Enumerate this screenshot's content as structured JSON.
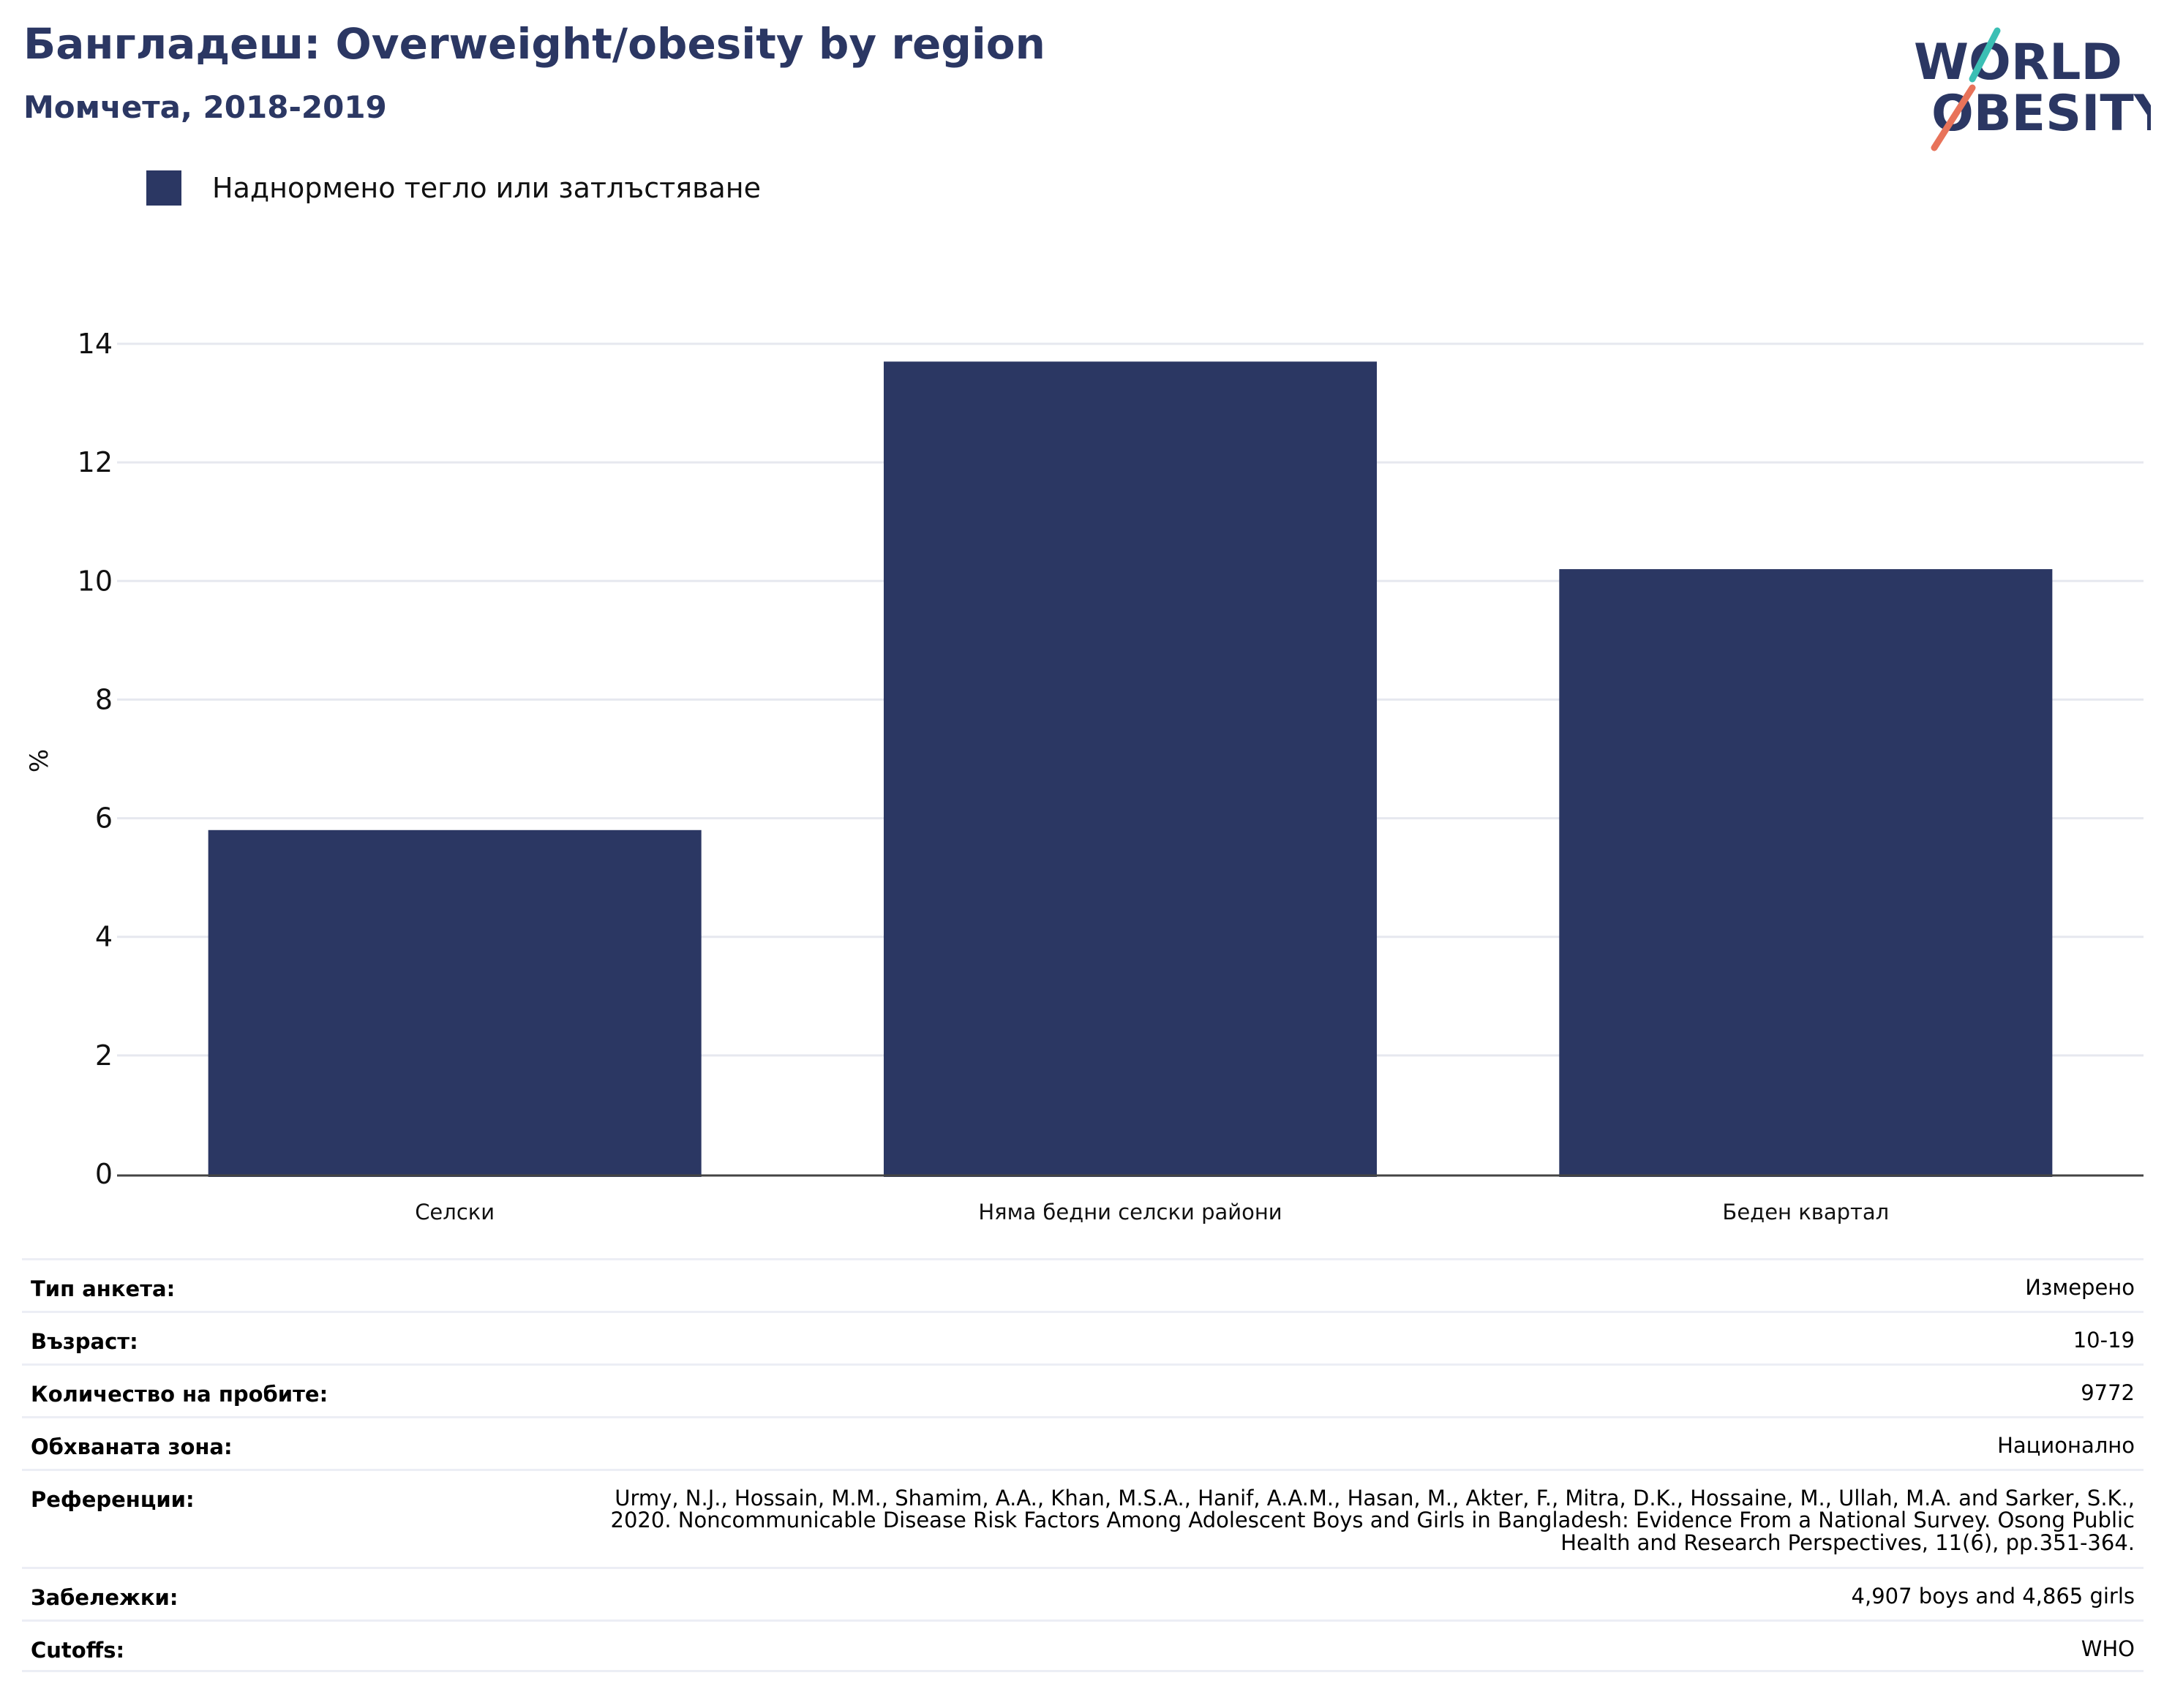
{
  "header": {
    "title": "Бангладеш: Overweight/obesity by region",
    "subtitle": "Момчета, 2018-2019"
  },
  "logo": {
    "line1": "WORLD",
    "line2": "OBESITY",
    "colors": {
      "navy": "#2b3763",
      "teal": "#3bbfb4",
      "coral": "#e8735a"
    }
  },
  "legend": {
    "label": "Наднормено тегло или затлъстяване",
    "color": "#2b3763"
  },
  "chart_data": {
    "type": "bar",
    "categories": [
      "Селски",
      "Няма бедни селски райони",
      "Беден квартал"
    ],
    "series": [
      {
        "name": "Наднормено тегло или затлъстяване",
        "values": [
          5.8,
          13.7,
          10.2
        ],
        "color": "#2b3763"
      }
    ],
    "ylabel": "%",
    "ylim": [
      0,
      14
    ],
    "yticks": [
      0,
      2,
      4,
      6,
      8,
      10,
      12,
      14
    ],
    "grid": true,
    "legend_position": "top-left"
  },
  "info": [
    {
      "label": "Тип анкета:",
      "value": "Измерено"
    },
    {
      "label": "Възраст:",
      "value": "10-19"
    },
    {
      "label": "Количество на пробите:",
      "value": "9772"
    },
    {
      "label": "Обхваната зона:",
      "value": "Национално"
    },
    {
      "label": "Референции:",
      "value": "Urmy, N.J., Hossain, M.M., Shamim, A.A., Khan, M.S.A., Hanif, A.A.M., Hasan, M., Akter, F., Mitra, D.K., Hossaine, M., Ullah, M.A. and Sarker, S.K., 2020. Noncommunicable Disease Risk Factors Among Adolescent Boys and Girls in Bangladesh: Evidence From a National Survey. Osong Public Health and Research Perspectives, 11(6), pp.351-364."
    },
    {
      "label": "Забележки:",
      "value": "4,907 boys and 4,865 girls"
    },
    {
      "label": "Cutoffs:",
      "value": "WHO"
    }
  ]
}
